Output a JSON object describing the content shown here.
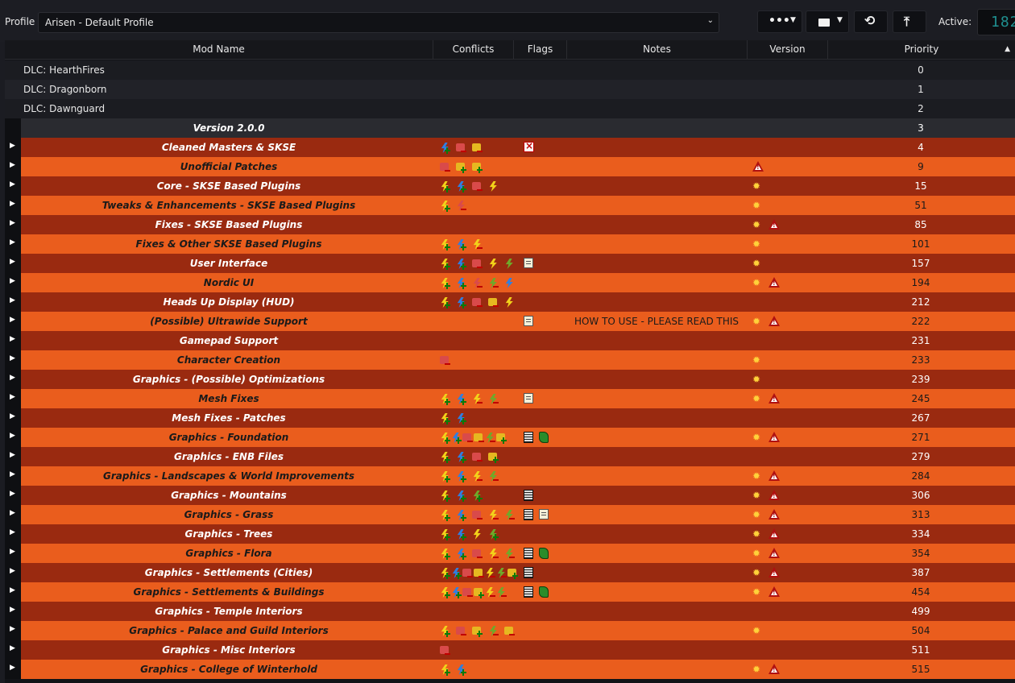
{
  "toolbar": {
    "profile_label": "Profile",
    "profile_value": "Arisen - Default Profile",
    "active_label": "Active:",
    "active_value": "182"
  },
  "columns": {
    "mod_name": "Mod Name",
    "conflicts": "Conflicts",
    "flags": "Flags",
    "notes": "Notes",
    "version": "Version",
    "priority": "Priority"
  },
  "colors": {
    "row_dark": "#9a2a10",
    "row_light": "#ea5d1d",
    "plain_a": "#1b1c21",
    "plain_b": "#212228",
    "header_row": "#2a2b30"
  },
  "rows": [
    {
      "name": "DLC: HearthFires",
      "priority": "0",
      "kind": "plain",
      "notes": "",
      "conflicts": [],
      "flags": [],
      "version": []
    },
    {
      "name": "DLC: Dragonborn",
      "priority": "1",
      "kind": "plain",
      "notes": "",
      "conflicts": [],
      "flags": [],
      "version": []
    },
    {
      "name": "DLC: Dawnguard",
      "priority": "2",
      "kind": "plain",
      "notes": "",
      "conflicts": [],
      "flags": [],
      "version": []
    },
    {
      "name": "Version 2.0.0",
      "priority": "3",
      "kind": "header",
      "notes": "",
      "conflicts": [],
      "flags": [],
      "version": []
    },
    {
      "name": "Cleaned Masters & SKSE",
      "priority": "4",
      "kind": "dark",
      "notes": "",
      "conflicts": [
        "bolt-blue-plus",
        "box-red-minus",
        "box-gold-minus"
      ],
      "flags": [
        "invalid"
      ],
      "version": []
    },
    {
      "name": "Unofficial Patches",
      "priority": "9",
      "kind": "light",
      "notes": "",
      "conflicts": [
        "box-red-minus",
        "box-gold-plus",
        "box-gold-plus"
      ],
      "flags": [],
      "version": [
        "warning"
      ]
    },
    {
      "name": "Core - SKSE Based Plugins",
      "priority": "15",
      "kind": "dark",
      "notes": "",
      "conflicts": [
        "bolt-yellow-plus",
        "bolt-blue-plus",
        "box-red-minus",
        "bolt-yellow"
      ],
      "flags": [],
      "version": [
        "update"
      ]
    },
    {
      "name": "Tweaks & Enhancements - SKSE Based Plugins",
      "priority": "51",
      "kind": "light",
      "notes": "",
      "conflicts": [
        "bolt-yellow-plus",
        "bolt-red-minus"
      ],
      "flags": [],
      "version": [
        "update"
      ]
    },
    {
      "name": "Fixes - SKSE Based Plugins",
      "priority": "85",
      "kind": "dark",
      "notes": "",
      "conflicts": [],
      "flags": [],
      "version": [
        "update",
        "warning"
      ]
    },
    {
      "name": "Fixes & Other SKSE Based Plugins",
      "priority": "101",
      "kind": "light",
      "notes": "",
      "conflicts": [
        "bolt-yellow-plus",
        "bolt-blue-plus",
        "bolt-yellow-minus"
      ],
      "flags": [],
      "version": [
        "update"
      ]
    },
    {
      "name": "User Interface",
      "priority": "157",
      "kind": "dark",
      "notes": "",
      "conflicts": [
        "bolt-yellow-plus",
        "bolt-blue-plus",
        "box-red-minus",
        "bolt-yellow",
        "bolt-green"
      ],
      "flags": [
        "notes"
      ],
      "version": [
        "update"
      ]
    },
    {
      "name": "Nordic UI",
      "priority": "194",
      "kind": "light",
      "notes": "",
      "conflicts": [
        "bolt-yellow-plus",
        "bolt-blue-plus",
        "bolt-red-minus",
        "bolt-green-minus",
        "bolt-blue"
      ],
      "flags": [],
      "version": [
        "update",
        "warning"
      ]
    },
    {
      "name": "Heads Up Display (HUD)",
      "priority": "212",
      "kind": "dark",
      "notes": "",
      "conflicts": [
        "bolt-yellow-plus",
        "bolt-blue-plus",
        "box-red-minus",
        "box-gold-minus",
        "bolt-yellow"
      ],
      "flags": [],
      "version": []
    },
    {
      "name": "(Possible) Ultrawide Support",
      "priority": "222",
      "kind": "light",
      "notes": "HOW TO USE - PLEASE READ THIS",
      "conflicts": [],
      "flags": [
        "notes"
      ],
      "version": [
        "update",
        "warning"
      ]
    },
    {
      "name": "Gamepad Support",
      "priority": "231",
      "kind": "dark",
      "notes": "",
      "conflicts": [],
      "flags": [],
      "version": []
    },
    {
      "name": "Character Creation",
      "priority": "233",
      "kind": "light",
      "notes": "",
      "conflicts": [
        "box-red-minus"
      ],
      "flags": [],
      "version": [
        "update"
      ]
    },
    {
      "name": "Graphics - (Possible) Optimizations",
      "priority": "239",
      "kind": "dark",
      "notes": "",
      "conflicts": [],
      "flags": [],
      "version": [
        "update"
      ]
    },
    {
      "name": "Mesh Fixes",
      "priority": "245",
      "kind": "light",
      "notes": "",
      "conflicts": [
        "bolt-yellow-plus",
        "bolt-blue-plus",
        "bolt-yellow-minus",
        "bolt-green-minus"
      ],
      "flags": [
        "notes"
      ],
      "version": [
        "update",
        "warning"
      ]
    },
    {
      "name": "Mesh Fixes - Patches",
      "priority": "267",
      "kind": "dark",
      "notes": "",
      "conflicts": [
        "bolt-yellow-plus",
        "bolt-blue-plus"
      ],
      "flags": [],
      "version": []
    },
    {
      "name": "Graphics - Foundation",
      "priority": "271",
      "kind": "light",
      "notes": "",
      "conflicts": [
        "bolt-yellow-plus",
        "bolt-blue-plus",
        "box-red-minus",
        "box-gold-minus",
        "bolt-green-minus",
        "box-gold-plus"
      ],
      "flags": [
        "archive",
        "plugin"
      ],
      "version": [
        "update",
        "warning"
      ]
    },
    {
      "name": "Graphics - ENB Files",
      "priority": "279",
      "kind": "dark",
      "notes": "",
      "conflicts": [
        "bolt-yellow-plus",
        "bolt-blue-plus",
        "box-red-minus",
        "box-gold-plus"
      ],
      "flags": [],
      "version": []
    },
    {
      "name": "Graphics - Landscapes & World Improvements",
      "priority": "284",
      "kind": "light",
      "notes": "",
      "conflicts": [
        "bolt-yellow-plus",
        "bolt-blue-plus",
        "bolt-yellow-minus",
        "bolt-green-minus"
      ],
      "flags": [],
      "version": [
        "update",
        "warning"
      ]
    },
    {
      "name": "Graphics - Mountains",
      "priority": "306",
      "kind": "dark",
      "notes": "",
      "conflicts": [
        "bolt-yellow-plus",
        "bolt-blue-plus",
        "bolt-green-plus"
      ],
      "flags": [
        "archive"
      ],
      "version": [
        "update",
        "warning"
      ]
    },
    {
      "name": "Graphics - Grass",
      "priority": "313",
      "kind": "light",
      "notes": "",
      "conflicts": [
        "bolt-yellow-plus",
        "bolt-blue-plus",
        "box-red-minus",
        "bolt-yellow-minus",
        "bolt-green-minus"
      ],
      "flags": [
        "archive",
        "notes"
      ],
      "version": [
        "update",
        "warning"
      ]
    },
    {
      "name": "Graphics - Trees",
      "priority": "334",
      "kind": "dark",
      "notes": "",
      "conflicts": [
        "bolt-yellow-plus",
        "bolt-blue-plus",
        "bolt-yellow",
        "bolt-green-plus"
      ],
      "flags": [],
      "version": [
        "update",
        "warning"
      ]
    },
    {
      "name": "Graphics - Flora",
      "priority": "354",
      "kind": "light",
      "notes": "",
      "conflicts": [
        "bolt-yellow-plus",
        "bolt-blue-plus",
        "box-red-minus",
        "bolt-yellow-minus",
        "bolt-green-minus"
      ],
      "flags": [
        "archive",
        "plugin"
      ],
      "version": [
        "update",
        "warning"
      ]
    },
    {
      "name": "Graphics - Settlements (Cities)",
      "priority": "387",
      "kind": "dark",
      "notes": "",
      "conflicts": [
        "bolt-yellow-plus",
        "bolt-blue-plus",
        "box-red-minus",
        "box-gold-minus",
        "bolt-yellow-minus",
        "bolt-green-minus",
        "box-gold-plus"
      ],
      "flags": [
        "archive"
      ],
      "version": [
        "update",
        "warning"
      ]
    },
    {
      "name": "Graphics - Settlements & Buildings",
      "priority": "454",
      "kind": "light",
      "notes": "",
      "conflicts": [
        "bolt-yellow-plus",
        "bolt-blue-plus",
        "box-red-minus",
        "box-gold-plus",
        "bolt-yellow-minus",
        "bolt-green-minus"
      ],
      "flags": [
        "archive",
        "plugin"
      ],
      "version": [
        "update",
        "warning"
      ]
    },
    {
      "name": "Graphics - Temple Interiors",
      "priority": "499",
      "kind": "dark",
      "notes": "",
      "conflicts": [],
      "flags": [],
      "version": []
    },
    {
      "name": "Graphics - Palace and Guild Interiors",
      "priority": "504",
      "kind": "light",
      "notes": "",
      "conflicts": [
        "bolt-yellow-plus",
        "box-red-minus",
        "box-gold-plus",
        "bolt-green-minus",
        "box-gold-minus"
      ],
      "flags": [],
      "version": [
        "update"
      ]
    },
    {
      "name": "Graphics - Misc Interiors",
      "priority": "511",
      "kind": "dark",
      "notes": "",
      "conflicts": [
        "box-red-minus"
      ],
      "flags": [],
      "version": []
    },
    {
      "name": "Graphics - College of Winterhold",
      "priority": "515",
      "kind": "light",
      "notes": "",
      "conflicts": [
        "bolt-yellow-plus",
        "bolt-blue-plus"
      ],
      "flags": [],
      "version": [
        "update",
        "warning"
      ]
    }
  ]
}
